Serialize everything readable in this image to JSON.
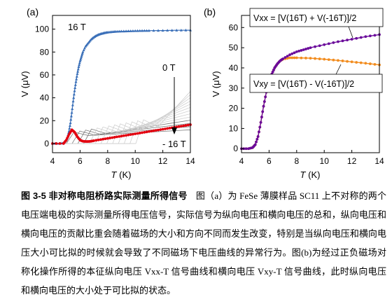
{
  "chart_data": [
    {
      "panel_label": "(a)",
      "type": "line",
      "xlabel_italic": "T",
      "xlabel_unit": " (K)",
      "ylabel": "V (μV)",
      "xlim": [
        4,
        14
      ],
      "ylim": [
        -8,
        112
      ],
      "xticks": [
        "4",
        "6",
        "8",
        "10",
        "12",
        "14"
      ],
      "yticks": [
        "0",
        "20",
        "40",
        "60",
        "80",
        "100"
      ],
      "annotations": [
        "16 T",
        "0 T",
        "- 16 T"
      ],
      "colors": {
        "16T": "#3a6fb8",
        "minus16T": "#e3000f",
        "gray": "#7a7a7a",
        "light": "#cfcfcf"
      },
      "series": [
        {
          "name": "16 T",
          "x": [
            4.0,
            4.5,
            4.8,
            5.0,
            5.1,
            5.2,
            5.3,
            5.4,
            5.5,
            5.6,
            5.7,
            5.8,
            5.9,
            6.0,
            6.1,
            6.2,
            6.4,
            6.6,
            6.8,
            7.0,
            7.2,
            7.4,
            7.6,
            7.8,
            8.0,
            8.3,
            8.6,
            9.0,
            9.5,
            10.0,
            10.5,
            11.0,
            12.0,
            13.0,
            14.0
          ],
          "y": [
            0,
            0,
            0.5,
            3,
            6,
            11,
            18,
            27,
            37,
            46,
            54,
            61,
            67,
            72,
            76,
            80,
            85,
            88,
            91,
            93,
            94.5,
            95.5,
            96.2,
            96.8,
            97.2,
            97.6,
            97.9,
            98.1,
            98.3,
            98.5,
            98.6,
            98.7,
            98.8,
            99.0,
            99.1
          ]
        },
        {
          "name": "- 16 T",
          "x": [
            4.0,
            4.8,
            5.0,
            5.2,
            5.4,
            5.6,
            5.8,
            6.0,
            6.2,
            6.4,
            6.6,
            6.8,
            7.0,
            7.5,
            8.0,
            8.5,
            9.0,
            9.5,
            10.0,
            10.5,
            11.0,
            11.5,
            12.0,
            12.5,
            13.0,
            13.5,
            14.0
          ],
          "y": [
            0,
            0,
            3,
            8,
            12,
            10,
            6,
            3,
            2,
            1.8,
            1.8,
            2,
            2.5,
            3.5,
            4.5,
            5.5,
            6.5,
            7.5,
            8.5,
            9.5,
            10.5,
            11.5,
            12.5,
            13.5,
            14.5,
            15.5,
            16.5
          ]
        }
      ]
    },
    {
      "panel_label": "(b)",
      "type": "line",
      "xlabel_italic": "T",
      "xlabel_unit": " (K)",
      "ylabel": "V (μV)",
      "xlim": [
        4,
        14
      ],
      "ylim": [
        -2,
        66
      ],
      "xticks": [
        "4",
        "6",
        "8",
        "10",
        "12",
        "14"
      ],
      "yticks": [
        "0",
        "10",
        "20",
        "30",
        "40",
        "50",
        "60"
      ],
      "colors": {
        "vxx": "#6a0a9a",
        "vxy": "#f28c1e"
      },
      "series": [
        {
          "name": "V_xx",
          "legend_text": "Vxx = [V(16T) + V(-16T)]/2",
          "x": [
            4.0,
            4.5,
            4.8,
            5.0,
            5.2,
            5.4,
            5.6,
            5.8,
            6.0,
            6.2,
            6.4,
            6.6,
            6.8,
            7.0,
            7.5,
            8.0,
            8.5,
            9.0,
            10.0,
            11.0,
            12.0,
            13.0,
            14.0
          ],
          "y": [
            0,
            0,
            0.5,
            2,
            6,
            13,
            21,
            28,
            33,
            37,
            40,
            42,
            43.5,
            44.5,
            46.5,
            48,
            49,
            50,
            51.5,
            53,
            54.2,
            55.5,
            56.5
          ]
        },
        {
          "name": "V_xy",
          "legend_text": "Vxy = [V(16T) - V(-16T)]/2",
          "x": [
            4.0,
            4.5,
            4.8,
            5.0,
            5.2,
            5.4,
            5.6,
            5.8,
            6.0,
            6.2,
            6.4,
            6.6,
            6.8,
            7.0,
            7.5,
            8.0,
            9.0,
            10.0,
            11.0,
            12.0,
            13.0,
            14.0
          ],
          "y": [
            0,
            0,
            0.5,
            2,
            6,
            13,
            21,
            28,
            33,
            37,
            40,
            42,
            43.5,
            44.3,
            45,
            45,
            44.8,
            44.3,
            43.7,
            43,
            42.3,
            41.5
          ]
        }
      ]
    }
  ],
  "caption": {
    "title": "图 3-5  非对称电阻桥路实际测量所得信号",
    "text": "图（a）为 FeSe 薄膜样品 SC11 上不对称的两个电压端电极的实际测量所得电压信号，实际信号为纵向电压和横向电压的总和，纵向电压和横向电压的贡献比重会随着磁场的大小和方向不同而发生改变，特别是当纵向电压和横向电压大小可比拟的时候就会导致了不同磁场下电压曲线的异常行为。图(b)为经过正负磁场对称化操作所得的本征纵向电压 Vxx-T 信号曲线和横向电压 Vxy-T 信号曲线，此时纵向电压和横向电压的大小处于可比拟的状态。"
  }
}
